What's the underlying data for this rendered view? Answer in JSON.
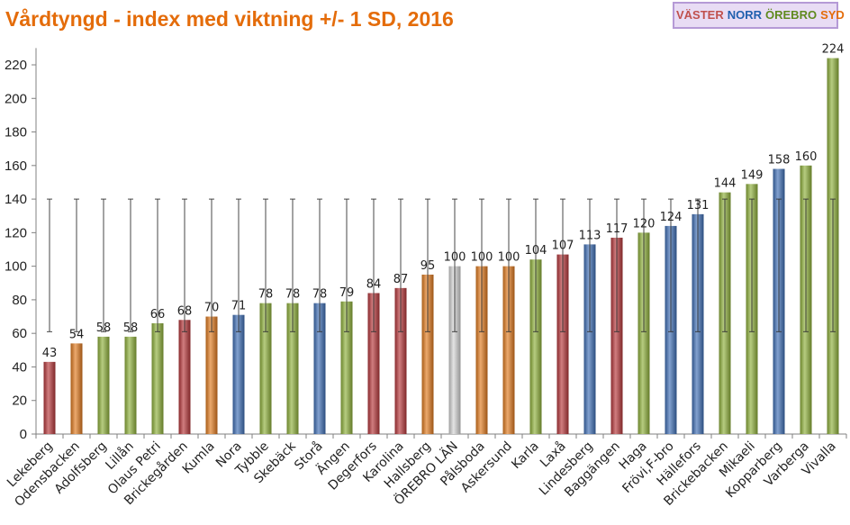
{
  "title": "Vårdtyngd - index med viktning +/- 1 SD, 2016",
  "regions": [
    {
      "label": "VÄSTER",
      "color": "#c0504d"
    },
    {
      "label": "NORR",
      "color": "#1f5fae"
    },
    {
      "label": "ÖREBRO",
      "color": "#5f8a1e"
    },
    {
      "label": "SYD",
      "color": "#e46c0a"
    }
  ],
  "colors": {
    "red": "#b6373a",
    "orange": "#e07a1f",
    "green": "#8fb03b",
    "blue": "#3f6fb5",
    "gray": "#d4d4d4"
  },
  "chart_data": {
    "type": "bar",
    "title": "Vårdtyngd - index med viktning +/- 1 SD, 2016",
    "xlabel": "",
    "ylabel": "",
    "ylim": [
      0,
      230
    ],
    "yticks": [
      0,
      20,
      40,
      60,
      80,
      100,
      120,
      140,
      160,
      180,
      200,
      220
    ],
    "grid": false,
    "legend": "none",
    "error_band": {
      "low": 61,
      "high": 140
    },
    "categories": [
      "Lekeberg",
      "Odensbacken",
      "Adolfsberg",
      "Lillån",
      "Olaus Petri",
      "Brickegården",
      "Kumla",
      "Nora",
      "Tybble",
      "Skebäck",
      "Storå",
      "Ängen",
      "Degerfors",
      "Karolina",
      "Hallsberg",
      "ÖREBRO LÄN",
      "Pålsboda",
      "Askersund",
      "Karla",
      "Laxå",
      "Lindesberg",
      "Baggängen",
      "Haga",
      "Frövi,F-bro",
      "Hällefors",
      "Brickebacken",
      "Mikaeli",
      "Kopparberg",
      "Varberga",
      "Vivalla"
    ],
    "values": [
      43,
      54,
      58,
      58,
      66,
      68,
      70,
      71,
      78,
      78,
      78,
      79,
      84,
      87,
      95,
      100,
      100,
      100,
      104,
      107,
      113,
      117,
      120,
      124,
      131,
      144,
      149,
      158,
      160,
      224
    ],
    "bar_colors": [
      "red",
      "orange",
      "green",
      "green",
      "green",
      "red",
      "orange",
      "blue",
      "green",
      "green",
      "blue",
      "green",
      "red",
      "red",
      "orange",
      "gray",
      "orange",
      "orange",
      "green",
      "red",
      "blue",
      "red",
      "green",
      "blue",
      "blue",
      "green",
      "green",
      "blue",
      "green",
      "green"
    ]
  }
}
